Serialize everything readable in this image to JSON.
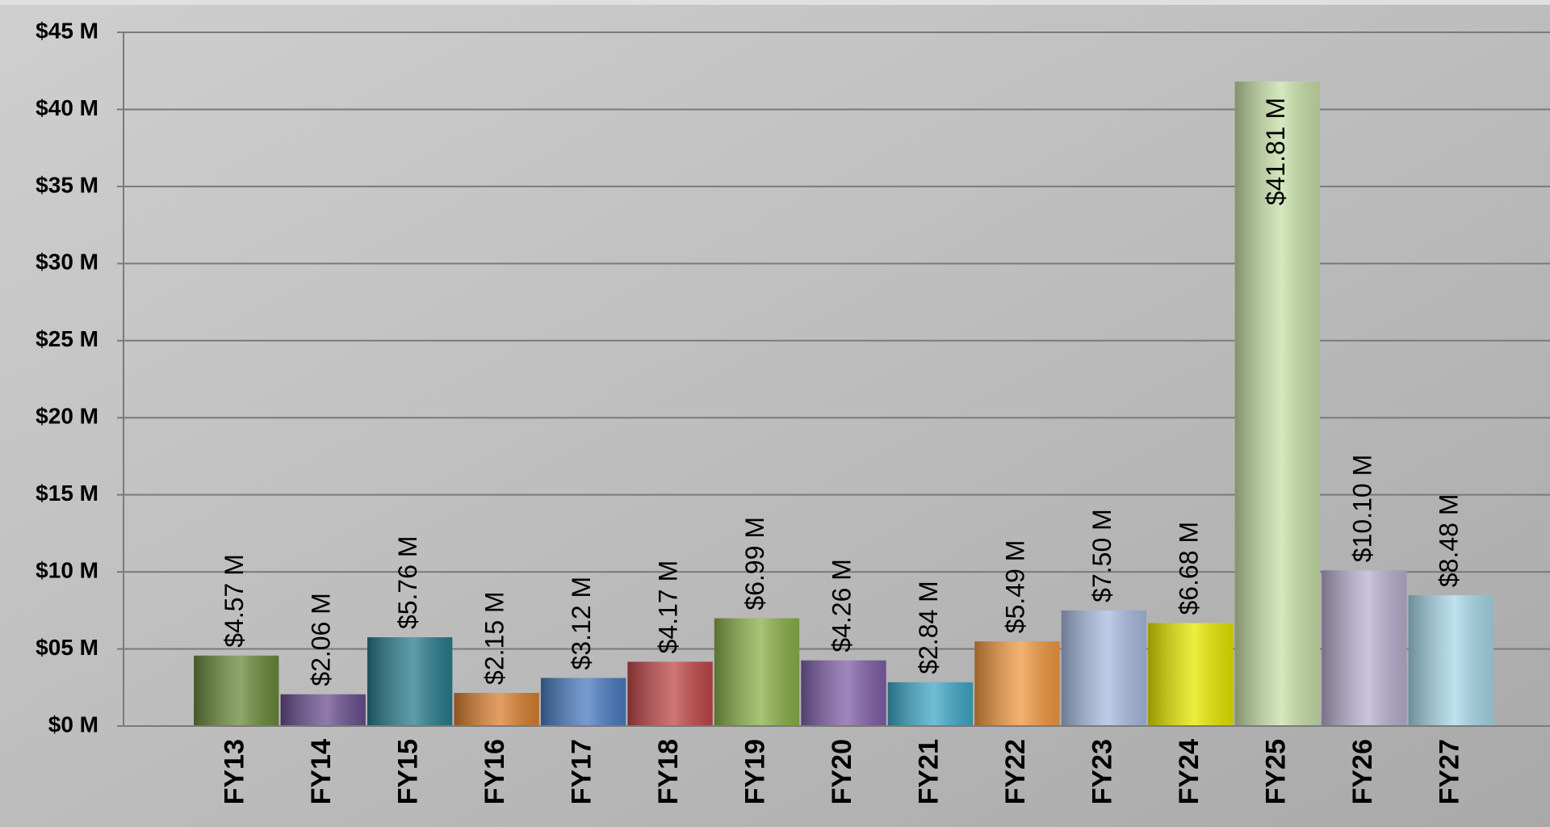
{
  "chart_data": {
    "type": "bar",
    "categories": [
      "FY13",
      "FY14",
      "FY15",
      "FY16",
      "FY17",
      "FY18",
      "FY19",
      "FY20",
      "FY21",
      "FY22",
      "FY23",
      "FY24",
      "FY25",
      "FY26",
      "FY27"
    ],
    "values": [
      4.57,
      2.06,
      5.76,
      2.15,
      3.12,
      4.17,
      6.99,
      4.26,
      2.84,
      5.49,
      7.5,
      6.68,
      41.81,
      10.1,
      8.48
    ],
    "value_labels": [
      "$4.57 M",
      "$2.06 M",
      "$5.76 M",
      "$2.15 M",
      "$3.12 M",
      "$4.17 M",
      "$6.99 M",
      "$4.26 M",
      "$2.84 M",
      "$5.49 M",
      "$7.50 M",
      "$6.68 M",
      "$41.81 M",
      "$10.10 M",
      "$8.48 M"
    ],
    "colors": [
      "#6a8a3a",
      "#6a4f8f",
      "#2a7c8c",
      "#d98030",
      "#4a7cc0",
      "#c04848",
      "#8ab04a",
      "#8060a8",
      "#40a8c8",
      "#f09840",
      "#a8bce0",
      "#e8e800",
      "#c8e0a8",
      "#b8b0d0",
      "#a8d8e8"
    ],
    "ylim": [
      0,
      45
    ],
    "yticks": [
      {
        "value": 0,
        "label": "$0 M"
      },
      {
        "value": 5,
        "label": "$05 M"
      },
      {
        "value": 10,
        "label": "$10 M"
      },
      {
        "value": 15,
        "label": "$15 M"
      },
      {
        "value": 20,
        "label": "$20 M"
      },
      {
        "value": 25,
        "label": "$25 M"
      },
      {
        "value": 30,
        "label": "$30 M"
      },
      {
        "value": 35,
        "label": "$35 M"
      },
      {
        "value": 40,
        "label": "$40 M"
      },
      {
        "value": 45,
        "label": "$45 M"
      }
    ],
    "grid": true
  }
}
